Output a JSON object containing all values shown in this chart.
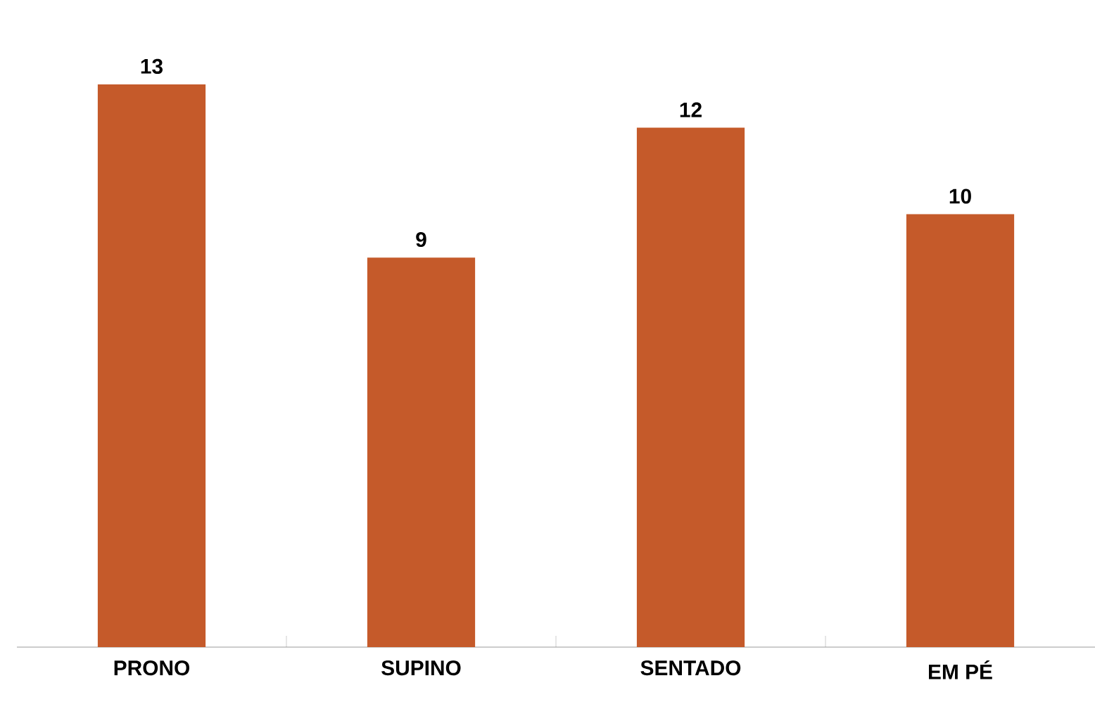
{
  "chart_data": {
    "type": "bar",
    "categories": [
      "PRONO",
      "SUPINO",
      "SENTADO",
      "EM PÉ"
    ],
    "values": [
      13,
      9,
      12,
      10
    ],
    "color": "#c55a2a",
    "data_labels": true,
    "tick_labels": "x"
  }
}
